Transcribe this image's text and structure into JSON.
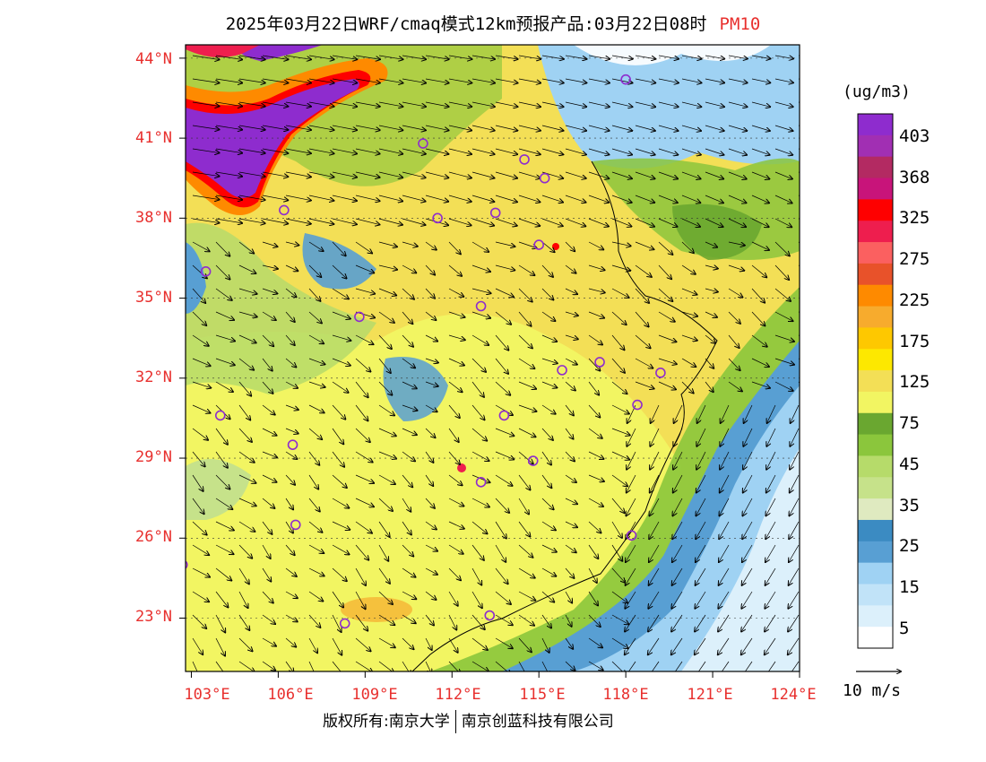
{
  "title": {
    "main": "2025年03月22日WRF/cmaq模式12km预报产品:03月22日08时",
    "pollutant": "PM10"
  },
  "axes": {
    "lat_labels": [
      "44°N",
      "41°N",
      "38°N",
      "35°N",
      "32°N",
      "29°N",
      "26°N",
      "23°N"
    ],
    "lon_labels": [
      "103°E",
      "106°E",
      "109°E",
      "112°E",
      "115°E",
      "118°E",
      "121°E",
      "124°E"
    ]
  },
  "legend": {
    "unit": "(ug/m3)",
    "labels": [
      "403",
      "368",
      "325",
      "275",
      "225",
      "175",
      "125",
      "75",
      "45",
      "35",
      "25",
      "15",
      "5"
    ],
    "colors": [
      "#8e2cce",
      "#a12fb3",
      "#b32a62",
      "#c8147a",
      "#fe0000",
      "#ee1e4e",
      "#fb6060",
      "#e8522a",
      "#fe8a00",
      "#f7ab2d",
      "#fec800",
      "#fde800",
      "#f3df56",
      "#f2f562",
      "#6aa730",
      "#8bc63c",
      "#b6db6a",
      "#c6e28a",
      "#dfeac0",
      "#3b8bc2",
      "#589fd3",
      "#9fd2f3",
      "#c1e3f8",
      "#dcf0fb",
      "#ffffff"
    ]
  },
  "wind_scale": {
    "label": "10 m/s"
  },
  "copyright": {
    "left": "版权所有:南京大学",
    "right": "南京创蓝科技有限公司"
  },
  "map": {
    "background_color": "#f3df56",
    "sites": [
      {
        "lon": 118.0,
        "lat": 43.2
      },
      {
        "lon": 111.0,
        "lat": 40.8
      },
      {
        "lon": 114.5,
        "lat": 40.2
      },
      {
        "lon": 115.2,
        "lat": 39.5
      },
      {
        "lon": 106.2,
        "lat": 38.3
      },
      {
        "lon": 111.5,
        "lat": 38.0
      },
      {
        "lon": 113.5,
        "lat": 38.2
      },
      {
        "lon": 115.0,
        "lat": 37.0
      },
      {
        "lon": 103.5,
        "lat": 36.0
      },
      {
        "lon": 113.0,
        "lat": 34.7
      },
      {
        "lon": 108.8,
        "lat": 34.3
      },
      {
        "lon": 115.8,
        "lat": 32.3
      },
      {
        "lon": 117.1,
        "lat": 32.6
      },
      {
        "lon": 119.2,
        "lat": 32.2
      },
      {
        "lon": 118.4,
        "lat": 31.0
      },
      {
        "lon": 113.8,
        "lat": 30.6
      },
      {
        "lon": 104.0,
        "lat": 30.6
      },
      {
        "lon": 106.5,
        "lat": 29.5
      },
      {
        "lon": 114.8,
        "lat": 28.9
      },
      {
        "lon": 113.0,
        "lat": 28.1
      },
      {
        "lon": 106.6,
        "lat": 26.5
      },
      {
        "lon": 118.2,
        "lat": 26.1
      },
      {
        "lon": 102.7,
        "lat": 25.0
      },
      {
        "lon": 108.3,
        "lat": 22.8
      },
      {
        "lon": 113.3,
        "lat": 23.1
      }
    ]
  }
}
